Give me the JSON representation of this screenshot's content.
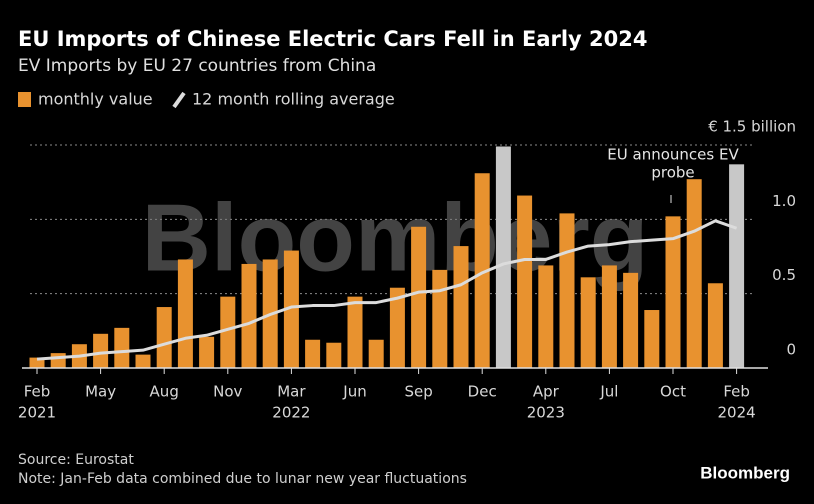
{
  "chart_data": {
    "type": "bar_line",
    "title": "EU Imports of Chinese Electric Cars Fell in Early 2024",
    "subtitle": "EV Imports by EU 27 countries from China",
    "categories": [
      "Feb",
      null,
      null,
      "May",
      null,
      null,
      "Aug",
      null,
      null,
      "Nov",
      null,
      null,
      "Mar",
      null,
      null,
      "Jun",
      null,
      null,
      "Sep",
      null,
      null,
      "Dec",
      null,
      null,
      "Apr",
      null,
      null,
      "Jul",
      null,
      null,
      "Oct",
      null,
      null,
      "Feb"
    ],
    "years": [
      "2021",
      null,
      null,
      null,
      null,
      null,
      null,
      null,
      null,
      null,
      null,
      null,
      "2022",
      null,
      null,
      null,
      null,
      null,
      null,
      null,
      null,
      null,
      null,
      null,
      "2023",
      null,
      null,
      null,
      null,
      null,
      null,
      null,
      null,
      "2024"
    ],
    "series": [
      {
        "name": "monthly value",
        "color": "#e8922f",
        "values": [
          0.07,
          0.1,
          0.16,
          0.23,
          0.27,
          0.09,
          0.41,
          0.73,
          0.21,
          0.48,
          0.7,
          0.73,
          0.79,
          0.19,
          0.17,
          0.48,
          0.19,
          0.54,
          0.95,
          0.66,
          0.82,
          1.31,
          1.49,
          1.16,
          0.69,
          1.04,
          0.61,
          0.69,
          0.64,
          0.39,
          1.02,
          1.27,
          0.57,
          1.37
        ],
        "colors": [
          "#e8922f",
          "#e8922f",
          "#e8922f",
          "#e8922f",
          "#e8922f",
          "#e8922f",
          "#e8922f",
          "#e8922f",
          "#e8922f",
          "#e8922f",
          "#e8922f",
          "#e8922f",
          "#e8922f",
          "#e8922f",
          "#e8922f",
          "#e8922f",
          "#e8922f",
          "#e8922f",
          "#e8922f",
          "#e8922f",
          "#e8922f",
          "#e8922f",
          "#c8c8c8",
          "#e8922f",
          "#e8922f",
          "#e8922f",
          "#e8922f",
          "#e8922f",
          "#e8922f",
          "#e8922f",
          "#e8922f",
          "#e8922f",
          "#e8922f",
          "#c8c8c8"
        ]
      },
      {
        "name": "12 month rolling average",
        "color": "#dcdcdc",
        "values": [
          0.06,
          0.07,
          0.08,
          0.1,
          0.11,
          0.12,
          0.16,
          0.2,
          0.22,
          0.26,
          0.3,
          0.36,
          0.41,
          0.42,
          0.42,
          0.44,
          0.44,
          0.47,
          0.51,
          0.52,
          0.56,
          0.64,
          0.7,
          0.73,
          0.73,
          0.78,
          0.82,
          0.83,
          0.85,
          0.86,
          0.87,
          0.92,
          0.99,
          0.94
        ]
      }
    ],
    "ylim": [
      0,
      1.5
    ],
    "yticks": [
      0,
      0.5,
      {
        "value": 1,
        "label": "1.0"
      },
      {
        "value": 1.5,
        "label": "€ 1.5 billion"
      }
    ],
    "grid": true,
    "annotation": [
      "EU announces EV",
      "probe"
    ],
    "watermark": "Bloomberg",
    "source": "Source: Eurostat",
    "note": "Note: Jan-Feb data combined due to lunar new year fluctuations",
    "logo": "Bloomberg"
  }
}
